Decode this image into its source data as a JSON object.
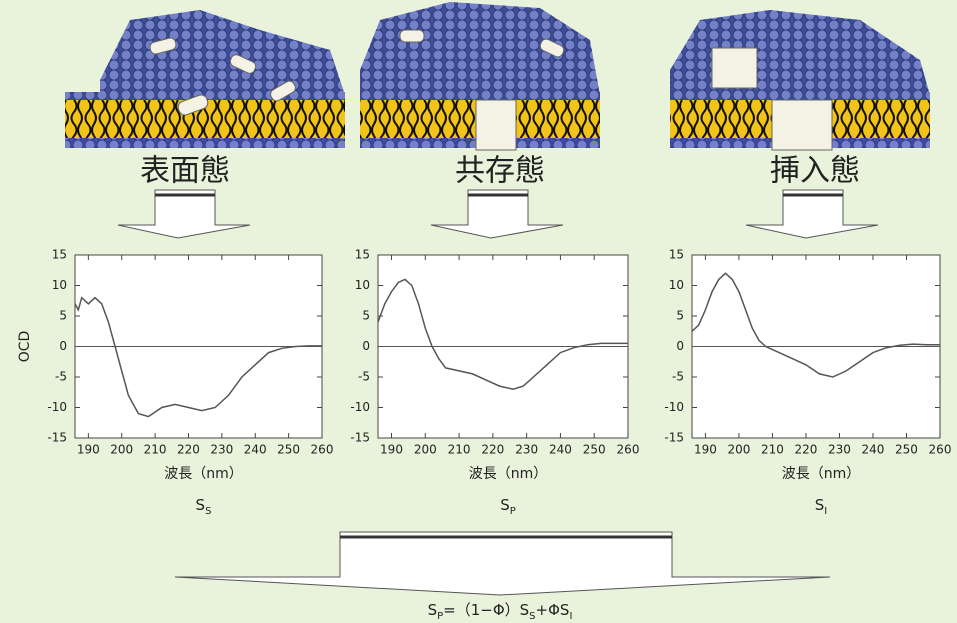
{
  "chart_data": [
    {
      "type": "line",
      "state_label": "表面態",
      "ylabel": "OCD",
      "xlabel": "波長（nm）",
      "caption": [
        "S",
        "S"
      ],
      "x": [
        186,
        187,
        188,
        190,
        192,
        194,
        196,
        198,
        200,
        202,
        205,
        208,
        212,
        216,
        220,
        224,
        228,
        232,
        236,
        240,
        244,
        248,
        252,
        256,
        260
      ],
      "series": [
        {
          "color": "#555555",
          "values": [
            7,
            6,
            8,
            7,
            8,
            7,
            4,
            0,
            -4,
            -8,
            -11,
            -11.5,
            -10,
            -9.5,
            -10,
            -10.5,
            -10,
            -8,
            -5,
            -3,
            -1,
            -0.3,
            0,
            0.1,
            0.1
          ]
        }
      ],
      "xlim": [
        186,
        260
      ],
      "ylim": [
        -15,
        15
      ],
      "xticks": [
        190,
        200,
        210,
        220,
        230,
        240,
        250,
        260
      ],
      "yticks": [
        -15,
        -10,
        -5,
        0,
        5,
        10,
        15
      ]
    },
    {
      "type": "line",
      "state_label": "共存態",
      "xlabel": "波長（nm）",
      "caption": [
        "S",
        "P"
      ],
      "x": [
        186,
        188,
        190,
        192,
        194,
        196,
        198,
        200,
        202,
        204,
        206,
        210,
        214,
        218,
        222,
        226,
        229,
        232,
        236,
        240,
        244,
        248,
        252,
        256,
        260
      ],
      "series": [
        {
          "color": "#555555",
          "values": [
            4,
            7,
            9,
            10.5,
            11,
            10,
            7,
            3,
            0,
            -2,
            -3.5,
            -4,
            -4.5,
            -5.5,
            -6.5,
            -7,
            -6.5,
            -5,
            -3,
            -1,
            -0.2,
            0.3,
            0.5,
            0.5,
            0.5
          ]
        }
      ],
      "xlim": [
        186,
        260
      ],
      "ylim": [
        -15,
        15
      ],
      "xticks": [
        190,
        200,
        210,
        220,
        230,
        240,
        250,
        260
      ],
      "yticks": [
        -15,
        -10,
        -5,
        0,
        5,
        10,
        15
      ]
    },
    {
      "type": "line",
      "state_label": "挿入態",
      "xlabel": "波長（nm）",
      "caption": [
        "S",
        "I"
      ],
      "x": [
        186,
        188,
        190,
        192,
        194,
        196,
        198,
        200,
        202,
        204,
        206,
        208,
        212,
        216,
        220,
        224,
        228,
        232,
        236,
        240,
        244,
        248,
        252,
        256,
        260
      ],
      "series": [
        {
          "color": "#555555",
          "values": [
            2.5,
            3.5,
            6,
            9,
            11,
            12,
            11,
            9,
            6,
            3,
            1,
            0,
            -1,
            -2,
            -3,
            -4.5,
            -5,
            -4,
            -2.5,
            -1,
            -0.2,
            0.2,
            0.4,
            0.3,
            0.3
          ]
        }
      ],
      "xlim": [
        186,
        260
      ],
      "ylim": [
        -15,
        15
      ],
      "xticks": [
        190,
        200,
        210,
        220,
        230,
        240,
        250,
        260
      ],
      "yticks": [
        -15,
        -10,
        -5,
        0,
        5,
        10,
        15
      ]
    }
  ],
  "formula": [
    "S",
    "P",
    "=（1−Φ）S",
    "S",
    "+ΦS",
    "I"
  ]
}
